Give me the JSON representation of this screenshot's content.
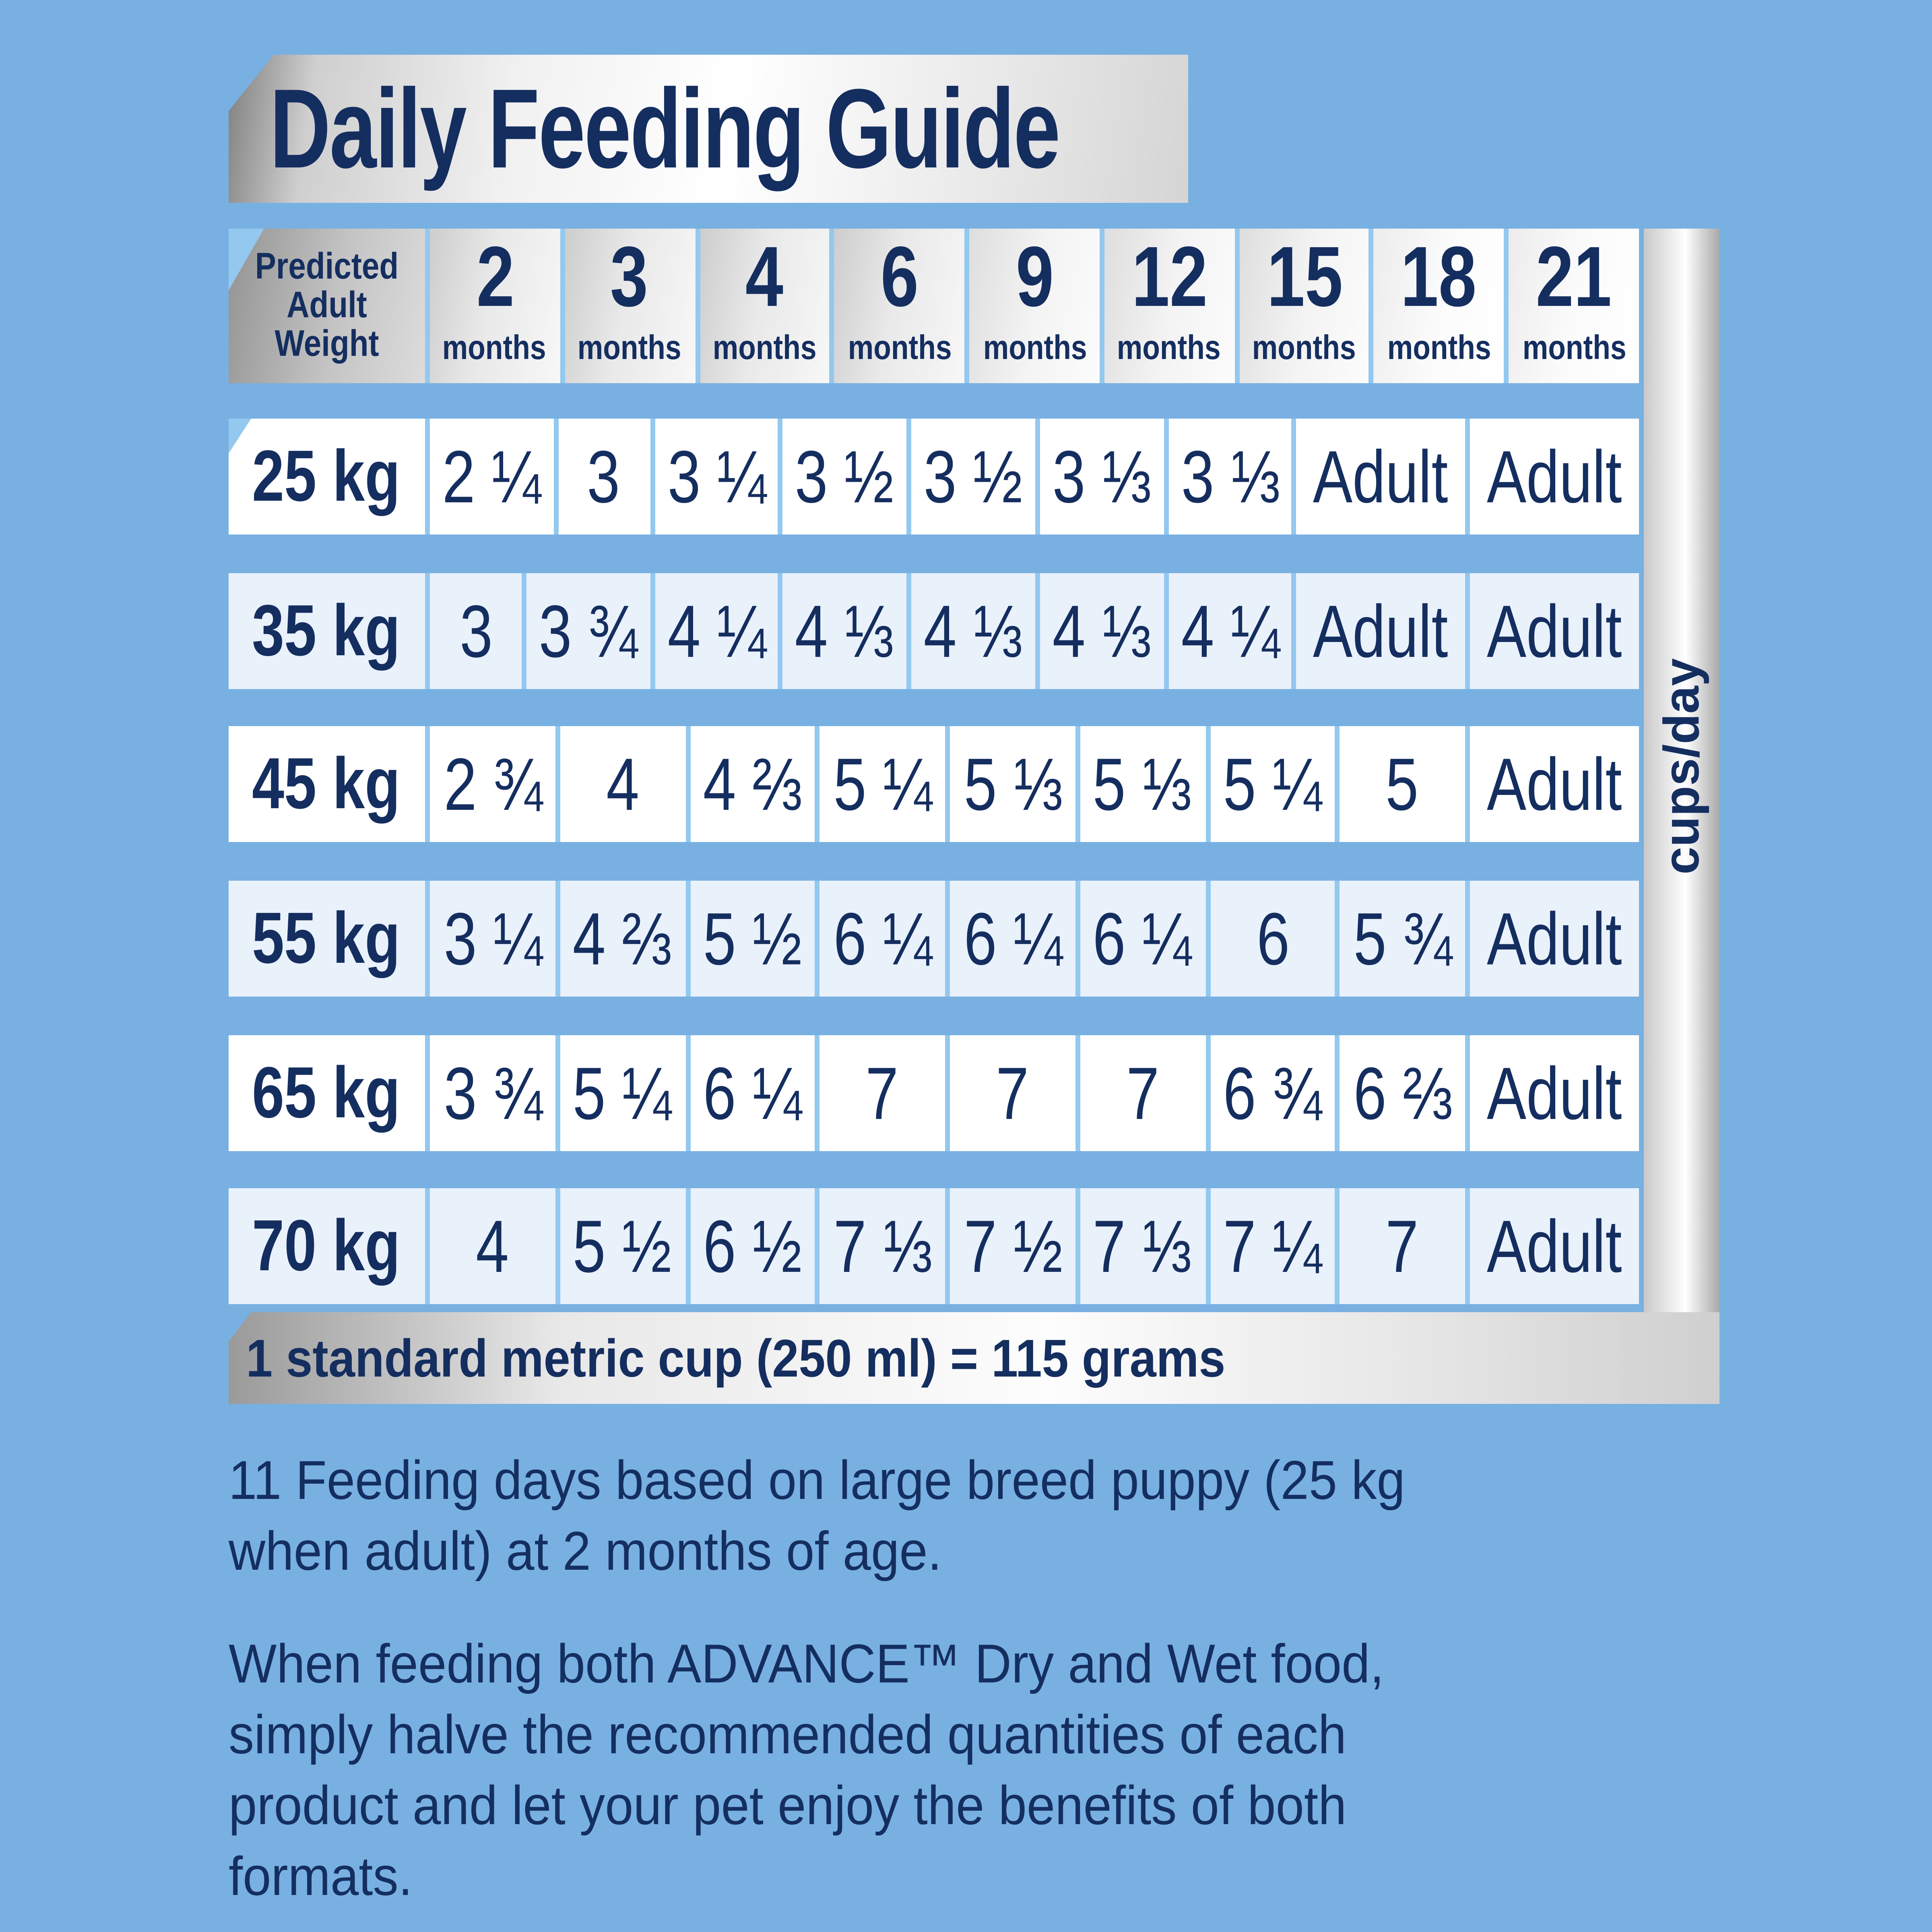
{
  "title": "Daily Feeding Guide",
  "table": {
    "corner_header": "Predicted Adult Weight",
    "unit_label": "cups/day",
    "age_columns": [
      {
        "number": "2",
        "unit": "months"
      },
      {
        "number": "3",
        "unit": "months"
      },
      {
        "number": "4",
        "unit": "months"
      },
      {
        "number": "6",
        "unit": "months"
      },
      {
        "number": "9",
        "unit": "months"
      },
      {
        "number": "12",
        "unit": "months"
      },
      {
        "number": "15",
        "unit": "months"
      },
      {
        "number": "18",
        "unit": "months"
      },
      {
        "number": "21",
        "unit": "months"
      }
    ],
    "rows": [
      {
        "weight": "25 kg",
        "values": [
          "2 ¼",
          "3",
          "3 ¼",
          "3 ½",
          "3 ½",
          "3 ⅓",
          "3 ⅓",
          "Adult",
          "Adult"
        ]
      },
      {
        "weight": "35 kg",
        "values": [
          "3",
          "3 ¾",
          "4 ¼",
          "4 ⅓",
          "4 ⅓",
          "4 ⅓",
          "4 ¼",
          "Adult",
          "Adult"
        ]
      },
      {
        "weight": "45 kg",
        "values": [
          "2 ¾",
          "4",
          "4 ⅔",
          "5 ¼",
          "5 ⅓",
          "5 ⅓",
          "5 ¼",
          "5",
          "Adult"
        ]
      },
      {
        "weight": "55 kg",
        "values": [
          "3 ¼",
          "4 ⅔",
          "5 ½",
          "6 ¼",
          "6 ¼",
          "6 ¼",
          "6",
          "5 ¾",
          "Adult"
        ]
      },
      {
        "weight": "65 kg",
        "values": [
          "3 ¾",
          "5 ¼",
          "6 ¼",
          "7",
          "7",
          "7",
          "6 ¾",
          "6 ⅔",
          "Adult"
        ]
      },
      {
        "weight": "70 kg",
        "values": [
          "4",
          "5 ½",
          "6 ½",
          "7 ⅓",
          "7 ½",
          "7 ⅓",
          "7 ¼",
          "7",
          "Adult"
        ]
      }
    ]
  },
  "footer_note": "1 standard metric cup (250 ml) = 115 grams",
  "notes": [
    "11 Feeding days based on large breed puppy (25 kg when adult) at 2 months of age.",
    "When feeding both ADVANCE™ Dry and Wet food, simply halve the recommended quantities of each product and let your pet enjoy the benefits of both formats."
  ],
  "colors": {
    "background": "#78b0e2",
    "navy_text": "#152e60",
    "row_alt": "#e9f1fb",
    "grid_line": "#93c8ef"
  }
}
